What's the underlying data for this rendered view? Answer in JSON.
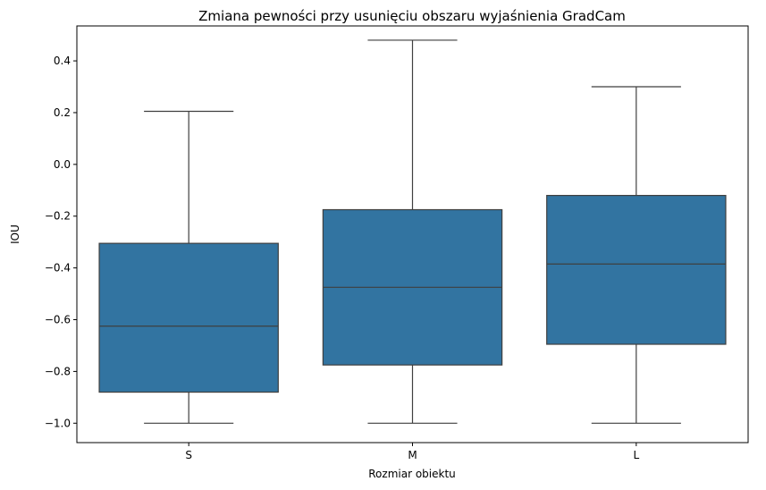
{
  "chart_data": {
    "type": "box",
    "title": "Zmiana pewności przy usunięciu obszaru wyjaśnienia GradCam",
    "xlabel": "Rozmiar obiektu",
    "ylabel": "IOU",
    "ylim": [
      -1.075,
      0.535
    ],
    "yticks": [
      0.4,
      0.2,
      0.0,
      -0.2,
      -0.4,
      -0.6,
      -0.8,
      -1.0
    ],
    "ytick_labels": [
      "0.4",
      "0.2",
      "0.0",
      "−0.2",
      "−0.4",
      "−0.6",
      "−0.8",
      "−1.0"
    ],
    "categories": [
      "S",
      "M",
      "L"
    ],
    "boxes": [
      {
        "category": "S",
        "whisker_low": -1.0,
        "q1": -0.88,
        "median": -0.625,
        "q3": -0.305,
        "whisker_high": 0.205
      },
      {
        "category": "M",
        "whisker_low": -1.0,
        "q1": -0.775,
        "median": -0.475,
        "q3": -0.175,
        "whisker_high": 0.48
      },
      {
        "category": "L",
        "whisker_low": -1.0,
        "q1": -0.695,
        "median": -0.385,
        "q3": -0.12,
        "whisker_high": 0.3
      }
    ],
    "colors": {
      "box_fill": "#3274a1",
      "line": "#3f3f3f"
    },
    "grid": false,
    "legend": "none"
  }
}
